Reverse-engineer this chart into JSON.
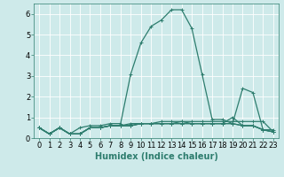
{
  "xlabel": "Humidex (Indice chaleur)",
  "x": [
    0,
    1,
    2,
    3,
    4,
    5,
    6,
    7,
    8,
    9,
    10,
    11,
    12,
    13,
    14,
    15,
    16,
    17,
    18,
    19,
    20,
    21,
    22,
    23
  ],
  "lines": [
    [
      0.5,
      0.2,
      0.5,
      0.2,
      0.5,
      0.6,
      0.6,
      0.7,
      0.7,
      3.1,
      4.6,
      5.4,
      5.7,
      6.2,
      6.2,
      5.3,
      3.1,
      0.9,
      0.9,
      0.7,
      2.4,
      2.2,
      0.4,
      0.4
    ],
    [
      0.5,
      0.2,
      0.5,
      0.2,
      0.2,
      0.5,
      0.5,
      0.6,
      0.6,
      0.7,
      0.7,
      0.7,
      0.8,
      0.8,
      0.8,
      0.8,
      0.8,
      0.8,
      0.8,
      0.8,
      0.8,
      0.8,
      0.8,
      0.3
    ],
    [
      0.5,
      0.2,
      0.5,
      0.2,
      0.2,
      0.5,
      0.5,
      0.6,
      0.6,
      0.6,
      0.7,
      0.7,
      0.7,
      0.7,
      0.8,
      0.7,
      0.7,
      0.7,
      0.7,
      0.7,
      0.6,
      0.6,
      0.4,
      0.3
    ],
    [
      0.5,
      0.2,
      0.5,
      0.2,
      0.2,
      0.5,
      0.5,
      0.6,
      0.6,
      0.6,
      0.7,
      0.7,
      0.7,
      0.7,
      0.7,
      0.7,
      0.7,
      0.7,
      0.7,
      1.0,
      0.6,
      0.6,
      0.4,
      0.3
    ],
    [
      0.5,
      0.2,
      0.5,
      0.2,
      0.2,
      0.5,
      0.5,
      0.6,
      0.6,
      0.6,
      0.7,
      0.7,
      0.7,
      0.7,
      0.7,
      0.7,
      0.7,
      0.7,
      0.7,
      0.7,
      0.6,
      0.6,
      0.4,
      0.3
    ]
  ],
  "line_color": "#2e7d6e",
  "bg_color": "#ceeaea",
  "grid_color": "#ffffff",
  "ylim": [
    0,
    6.5
  ],
  "yticks": [
    0,
    1,
    2,
    3,
    4,
    5,
    6
  ],
  "xticks": [
    0,
    1,
    2,
    3,
    4,
    5,
    6,
    7,
    8,
    9,
    10,
    11,
    12,
    13,
    14,
    15,
    16,
    17,
    18,
    19,
    20,
    21,
    22,
    23
  ],
  "marker": "+",
  "markersize": 3,
  "linewidth": 0.9,
  "xlabel_fontsize": 7,
  "tick_fontsize": 6
}
